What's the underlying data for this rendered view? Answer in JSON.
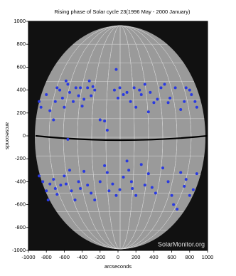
{
  "chart_data": {
    "type": "scatter",
    "title": "Rising phase of Solar cycle 23(1996 May - 2000 January)",
    "xlabel": "arcseconds",
    "ylabel": "arcseconds",
    "watermark": "SolarMonitor.org",
    "xlim": [
      -1000,
      1000
    ],
    "ylim": [
      -1000,
      1000
    ],
    "xticks": [
      -1000,
      -800,
      -600,
      -400,
      -200,
      0,
      200,
      400,
      600,
      800,
      1000
    ],
    "yticks": [
      1000,
      800,
      600,
      400,
      200,
      0,
      -200,
      -400,
      -600,
      -800,
      -1000
    ],
    "color": "#2a3ae0",
    "x": [
      -880,
      -860,
      -800,
      -760,
      -720,
      -700,
      -680,
      -650,
      -620,
      -600,
      -580,
      -560,
      -540,
      -500,
      -470,
      -440,
      -420,
      -400,
      -380,
      -340,
      -320,
      -300,
      -280,
      -260,
      -200,
      -150,
      -120,
      -40,
      -20,
      0,
      20,
      60,
      100,
      140,
      180,
      200,
      240,
      260,
      300,
      340,
      360,
      400,
      440,
      480,
      520,
      560,
      580,
      640,
      700,
      740,
      760,
      800,
      820,
      860,
      880,
      -560,
      -880,
      -840,
      -800,
      -780,
      -760,
      -720,
      -700,
      -680,
      -640,
      -600,
      -580,
      -540,
      -520,
      -480,
      -440,
      -420,
      -380,
      -340,
      -300,
      -260,
      -200,
      -150,
      -120,
      -100,
      -60,
      -20,
      20,
      60,
      100,
      120,
      150,
      160,
      200,
      260,
      300,
      340,
      380,
      420,
      500,
      560,
      600,
      620,
      660,
      700,
      740,
      760,
      800,
      840,
      880
    ],
    "values": [
      300,
      250,
      360,
      220,
      140,
      300,
      420,
      400,
      330,
      250,
      480,
      450,
      380,
      300,
      420,
      350,
      420,
      260,
      320,
      420,
      480,
      350,
      430,
      400,
      140,
      130,
      50,
      400,
      580,
      330,
      420,
      360,
      380,
      300,
      420,
      250,
      400,
      360,
      450,
      210,
      380,
      290,
      320,
      420,
      450,
      290,
      330,
      420,
      230,
      300,
      420,
      400,
      360,
      300,
      250,
      -30,
      -350,
      -400,
      -480,
      -560,
      -420,
      -380,
      -460,
      -510,
      -430,
      -350,
      -420,
      -300,
      -480,
      -560,
      -400,
      -460,
      -310,
      -430,
      -500,
      -560,
      -400,
      -260,
      -320,
      -480,
      -420,
      -520,
      -470,
      -360,
      -220,
      -300,
      -400,
      -460,
      -520,
      -250,
      -430,
      -330,
      -450,
      -500,
      -280,
      -400,
      -520,
      -600,
      -640,
      -320,
      -440,
      -380,
      -520,
      -470,
      -330
    ]
  }
}
